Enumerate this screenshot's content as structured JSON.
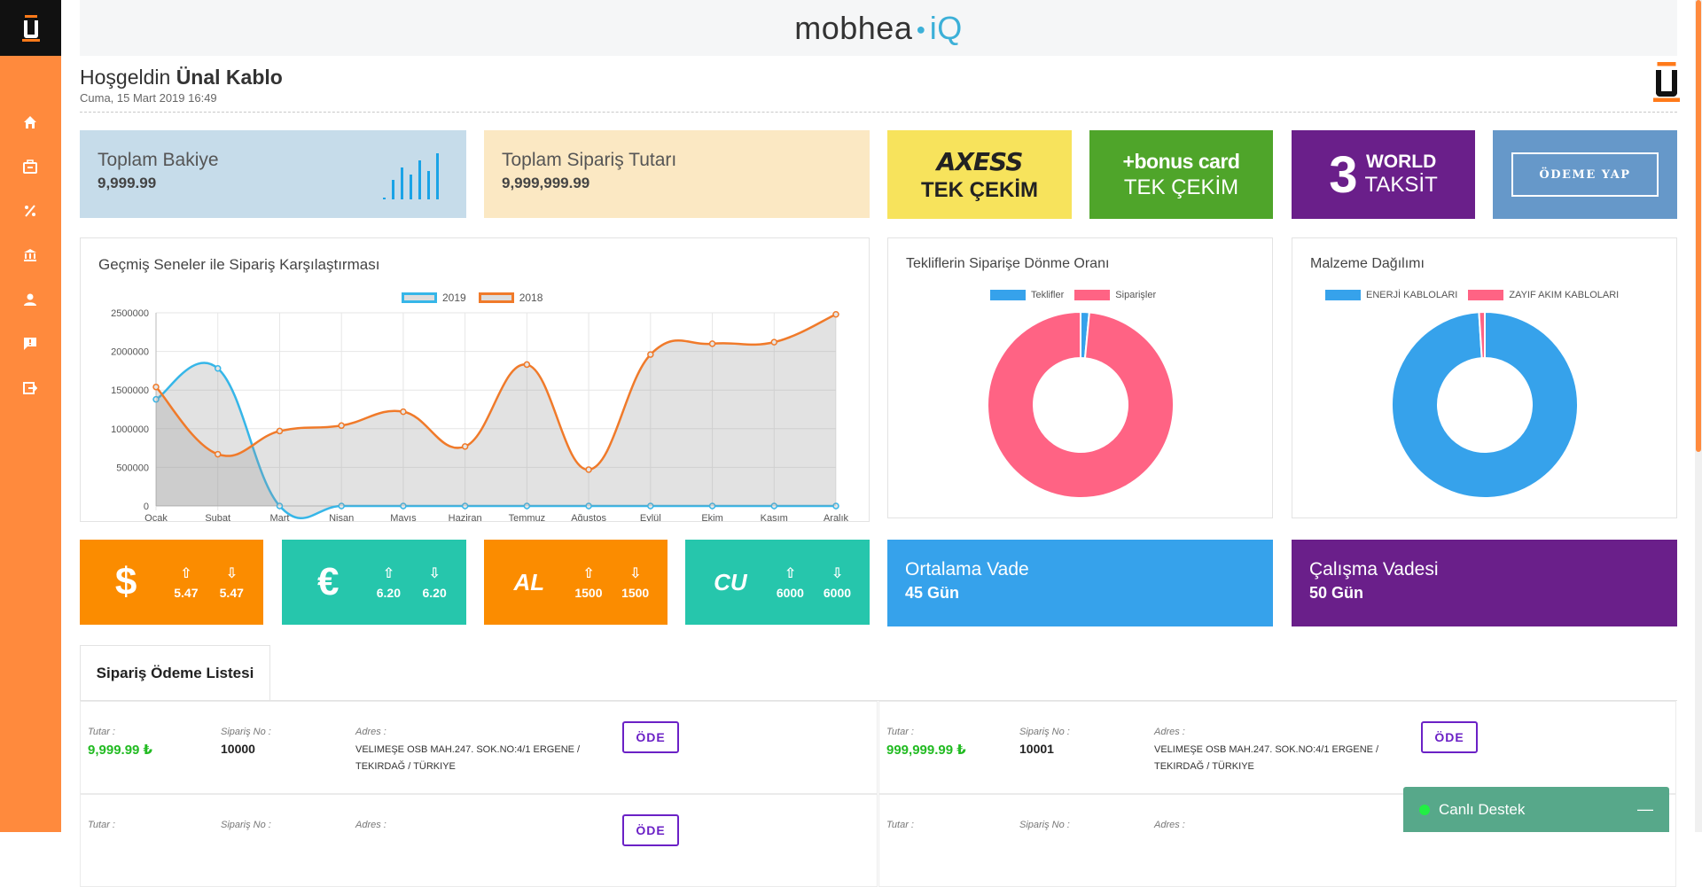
{
  "brand": {
    "name": "mobhea",
    "suffix": "iQ"
  },
  "welcome": {
    "greeting": "Hoşgeldin",
    "company": "Ünal Kablo",
    "date": "Cuma, 15 Mart 2019 16:49"
  },
  "sidebar": {
    "items": [
      {
        "icon": "home-icon"
      },
      {
        "icon": "briefcase-icon"
      },
      {
        "icon": "percent-icon"
      },
      {
        "icon": "bank-icon"
      },
      {
        "icon": "user-icon"
      },
      {
        "icon": "message-icon"
      },
      {
        "icon": "logout-icon"
      }
    ]
  },
  "stats": {
    "balance_title": "Toplam Bakiye",
    "balance_value": "9,999.99",
    "orders_title": "Toplam Sipariş Tutarı",
    "orders_value": "9,999,999.99"
  },
  "banks": {
    "axess": {
      "logo": "AXESS",
      "sub": "TEK ÇEKİM",
      "color": "#f7e35c"
    },
    "bonus": {
      "logo": "+bonus card",
      "sub": "TEK ÇEKİM",
      "color": "#4fa52a"
    },
    "world": {
      "num": "3",
      "logo": "WORLD",
      "sub": "TAKSİT",
      "color": "#6a1f8a"
    },
    "pay_button": "ÖDEME YAP"
  },
  "compare_chart": {
    "title": "Geçmiş Seneler ile Sipariş Karşılaştırması",
    "legend": [
      "2019",
      "2018"
    ]
  },
  "chart_data": [
    {
      "type": "line",
      "title": "Geçmiş Seneler ile Sipariş Karşılaştırması",
      "categories": [
        "Ocak",
        "Şubat",
        "Mart",
        "Nisan",
        "Mayıs",
        "Haziran",
        "Temmuz",
        "Ağustos",
        "Eylül",
        "Ekim",
        "Kasım",
        "Aralık"
      ],
      "ylim": [
        0,
        2500000
      ],
      "yticks": [
        "0",
        "500000",
        "1000000",
        "1500000",
        "2000000",
        "2500000"
      ],
      "series": [
        {
          "name": "2019",
          "color": "#36b6e8",
          "values": [
            1380000,
            1780000,
            0,
            0,
            0,
            0,
            0,
            0,
            0,
            0,
            0,
            0
          ]
        },
        {
          "name": "2018",
          "color": "#f07a2a",
          "values": [
            1540000,
            670000,
            970000,
            1040000,
            1220000,
            770000,
            1830000,
            470000,
            1960000,
            2100000,
            2120000,
            2480000
          ]
        }
      ]
    },
    {
      "type": "pie",
      "title": "Tekliflerin Siparişe Dönme Oranı",
      "categories": [
        "Teklifler",
        "Siparişler"
      ],
      "values": [
        1.5,
        98.5
      ],
      "colors": [
        "#36a2eb",
        "#ff6384"
      ]
    },
    {
      "type": "pie",
      "title": "Malzeme Dağılımı",
      "categories": [
        "ENERJİ KABLOLARI",
        "ZAYIF AKIM KABLOLARI"
      ],
      "values": [
        99,
        1
      ],
      "colors": [
        "#36a2eb",
        "#ff6384"
      ]
    }
  ],
  "rates": [
    {
      "symbol": "$",
      "up": "5.47",
      "down": "5.47",
      "color": "#fb8c00"
    },
    {
      "symbol": "€",
      "up": "6.20",
      "down": "6.20",
      "color": "#26c6ac"
    },
    {
      "symbol": "AL",
      "up": "1500",
      "down": "1500",
      "color": "#fb8c00"
    },
    {
      "symbol": "CU",
      "up": "6000",
      "down": "6000",
      "color": "#26c6ac"
    }
  ],
  "vade": {
    "avg_title": "Ortalama Vade",
    "avg_value": "45 Gün",
    "work_title": "Çalışma Vadesi",
    "work_value": "50 Gün"
  },
  "orders": {
    "tab": "Sipariş Ödeme Listesi",
    "labels": {
      "amount": "Tutar :",
      "no": "Sipariş No :",
      "address": "Adres :"
    },
    "pay_label": "ÖDE",
    "items": [
      {
        "amount": "9,999.99 ₺",
        "no": "10000",
        "address": "VELIMEŞE OSB MAH.247. SOK.NO:4/1 ERGENE / TEKIRDAĞ / TÜRKIYE"
      },
      {
        "amount": "999,999.99 ₺",
        "no": "10001",
        "address": "VELIMEŞE OSB MAH.247. SOK.NO:4/1 ERGENE / TEKIRDAĞ / TÜRKIYE"
      }
    ]
  },
  "live_support": {
    "label": "Canlı Destek",
    "minimize": "—"
  }
}
